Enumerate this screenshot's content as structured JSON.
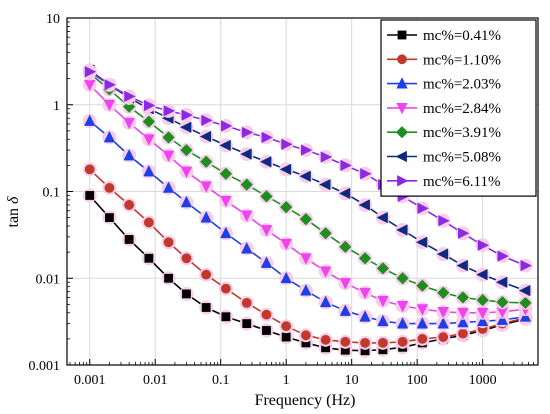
{
  "chart_data": {
    "type": "line",
    "title": "",
    "xlabel": "Frequency (Hz)",
    "ylabel_main": "tan",
    "ylabel_symbol": "δ",
    "xscale": "log",
    "yscale": "log",
    "xlim": [
      0.00045,
      7000
    ],
    "ylim": [
      0.001,
      10
    ],
    "xticks": [
      0.001,
      0.01,
      0.1,
      1,
      10,
      100,
      1000
    ],
    "xtick_labels": [
      "0.001",
      "0.01",
      "0.1",
      "1",
      "10",
      "100",
      "1000"
    ],
    "yticks": [
      0.001,
      0.01,
      0.1,
      1,
      10
    ],
    "ytick_labels": [
      "0.001",
      "0.01",
      "0.1",
      "1",
      "10"
    ],
    "grid": true,
    "legend_position": "top-right",
    "x": [
      0.001,
      0.002,
      0.004,
      0.008,
      0.016,
      0.03,
      0.06,
      0.12,
      0.25,
      0.5,
      1,
      2,
      4,
      8,
      16,
      30,
      60,
      120,
      250,
      500,
      1000,
      2000,
      4500
    ],
    "series": [
      {
        "name": "mc%=0.41%",
        "color": "#000000",
        "marker": "square",
        "values": [
          0.09,
          0.05,
          0.028,
          0.017,
          0.01,
          0.0066,
          0.0046,
          0.0036,
          0.003,
          0.0025,
          0.0021,
          0.0018,
          0.00158,
          0.00148,
          0.00146,
          0.0015,
          0.0016,
          0.0018,
          0.002,
          0.0022,
          0.0025,
          0.0029,
          0.0034
        ]
      },
      {
        "name": "mc%=1.10%",
        "color": "#c0392b",
        "marker": "circle",
        "values": [
          0.18,
          0.11,
          0.07,
          0.044,
          0.026,
          0.017,
          0.011,
          0.0076,
          0.0052,
          0.0038,
          0.0028,
          0.0022,
          0.00195,
          0.00185,
          0.0018,
          0.0018,
          0.00185,
          0.002,
          0.0021,
          0.0023,
          0.0026,
          0.003,
          0.0035
        ]
      },
      {
        "name": "mc%=2.03%",
        "color": "#1f3fe6",
        "marker": "triangle-up",
        "values": [
          0.65,
          0.42,
          0.26,
          0.17,
          0.11,
          0.075,
          0.05,
          0.033,
          0.022,
          0.015,
          0.01,
          0.0072,
          0.0053,
          0.0042,
          0.0036,
          0.0032,
          0.003,
          0.003,
          0.003,
          0.0031,
          0.0032,
          0.0033,
          0.0036
        ]
      },
      {
        "name": "mc%=2.84%",
        "color": "#ee44ee",
        "marker": "triangle-down",
        "values": [
          1.7,
          1.0,
          0.62,
          0.4,
          0.26,
          0.17,
          0.115,
          0.078,
          0.053,
          0.036,
          0.025,
          0.017,
          0.012,
          0.0088,
          0.0068,
          0.0055,
          0.0048,
          0.0044,
          0.0041,
          0.004,
          0.004,
          0.0041,
          0.0044
        ]
      },
      {
        "name": "mc%=3.91%",
        "color": "#1e8f1e",
        "marker": "diamond",
        "values": [
          2.3,
          1.5,
          0.95,
          0.64,
          0.42,
          0.3,
          0.22,
          0.16,
          0.12,
          0.088,
          0.066,
          0.048,
          0.033,
          0.023,
          0.017,
          0.013,
          0.01,
          0.0082,
          0.0068,
          0.006,
          0.0056,
          0.0053,
          0.0052
        ]
      },
      {
        "name": "mc%=5.08%",
        "color": "#102a80",
        "marker": "triangle-left",
        "values": [
          2.5,
          1.7,
          1.2,
          0.9,
          0.7,
          0.55,
          0.43,
          0.34,
          0.27,
          0.22,
          0.18,
          0.15,
          0.12,
          0.095,
          0.07,
          0.05,
          0.036,
          0.026,
          0.019,
          0.014,
          0.011,
          0.009,
          0.0072
        ]
      },
      {
        "name": "mc%=6.11%",
        "color": "#8a2be2",
        "marker": "triangle-right",
        "values": [
          2.4,
          1.7,
          1.25,
          0.98,
          0.85,
          0.76,
          0.66,
          0.57,
          0.48,
          0.42,
          0.35,
          0.3,
          0.25,
          0.2,
          0.16,
          0.12,
          0.088,
          0.064,
          0.046,
          0.033,
          0.024,
          0.018,
          0.014
        ]
      }
    ]
  }
}
